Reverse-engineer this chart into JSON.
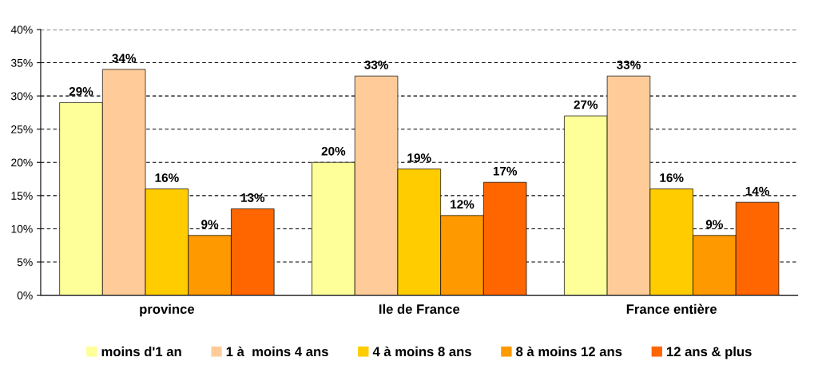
{
  "chart_data": {
    "type": "bar",
    "categories": [
      "province",
      "Ile de France",
      "France entière"
    ],
    "series": [
      {
        "name": "moins d'1 an",
        "color": "#ffff99",
        "values": [
          29,
          20,
          27
        ],
        "value_labels": [
          "29%",
          "20%",
          "27%"
        ]
      },
      {
        "name": "1 à  moins 4 ans",
        "color": "#ffcc99",
        "values": [
          34,
          33,
          33
        ],
        "value_labels": [
          "34%",
          "33%",
          "33%"
        ]
      },
      {
        "name": "4 à moins 8 ans",
        "color": "#ffcc00",
        "values": [
          16,
          19,
          16
        ],
        "value_labels": [
          "16%",
          "19%",
          "16%"
        ]
      },
      {
        "name": "8 à moins 12 ans",
        "color": "#ff9900",
        "values": [
          9,
          12,
          9
        ],
        "value_labels": [
          "9%",
          "12%",
          "9%"
        ]
      },
      {
        "name": "12 ans & plus",
        "color": "#ff6600",
        "values": [
          13,
          17,
          14
        ],
        "value_labels": [
          "13%",
          "17%",
          "14%"
        ]
      }
    ],
    "ylim": [
      0,
      40
    ],
    "yticks": [
      {
        "value": 0,
        "label": "0%"
      },
      {
        "value": 5,
        "label": "5%"
      },
      {
        "value": 10,
        "label": "10%"
      },
      {
        "value": 15,
        "label": "15%"
      },
      {
        "value": 20,
        "label": "20%"
      },
      {
        "value": 25,
        "label": "25%"
      },
      {
        "value": 30,
        "label": "30%"
      },
      {
        "value": 35,
        "label": "35%"
      },
      {
        "value": 40,
        "label": "40%"
      }
    ],
    "grid": "y",
    "legend": "bottom"
  }
}
